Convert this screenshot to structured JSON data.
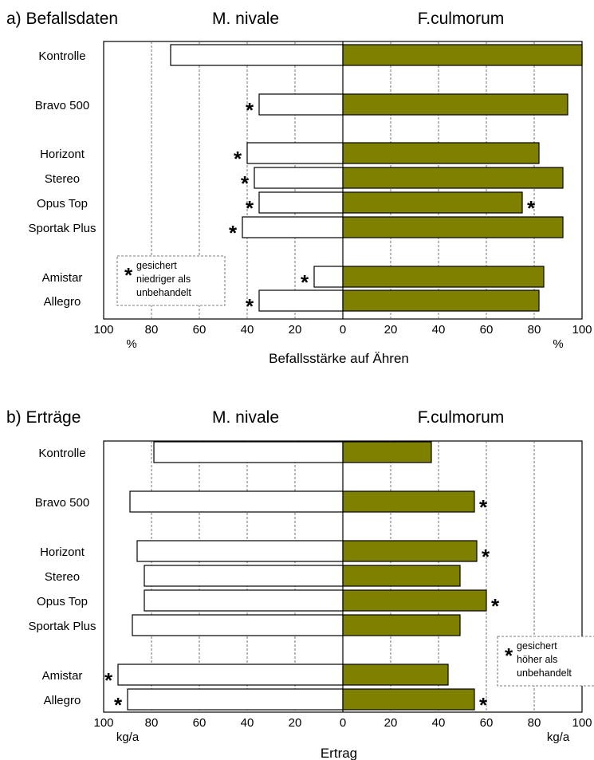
{
  "chart_data": [
    {
      "type": "bar",
      "label": "a) Befallsdaten",
      "xlabel": "Befallsstärke auf Ähren",
      "unit_left": "%",
      "unit_right": "%",
      "xlim": [
        0,
        100
      ],
      "ticks": [
        0,
        20,
        40,
        60,
        80,
        100
      ],
      "grid": true,
      "categories": [
        "Kontrolle",
        "Bravo 500",
        "Horizont",
        "Stereo",
        "Opus Top",
        "Sportak Plus",
        "Amistar",
        "Allegro"
      ],
      "series": [
        {
          "name": "M. nivale",
          "side": "left",
          "color": "#ffffff",
          "values": [
            72,
            35,
            40,
            37,
            35,
            42,
            12,
            35
          ],
          "significant": [
            false,
            true,
            true,
            true,
            true,
            true,
            true,
            true
          ]
        },
        {
          "name": "F.culmorum",
          "side": "right",
          "color": "#808000",
          "values": [
            100,
            94,
            82,
            92,
            75,
            92,
            84,
            82
          ],
          "significant": [
            false,
            false,
            false,
            false,
            true,
            false,
            false,
            false
          ]
        }
      ],
      "legend_note": {
        "symbol": "*",
        "lines": [
          "gesichert",
          "niedriger als",
          "unbehandelt"
        ]
      }
    },
    {
      "type": "bar",
      "label": "b) Erträge",
      "xlabel": "Ertrag",
      "unit_left": "kg/a",
      "unit_right": "kg/a",
      "xlim": [
        0,
        100
      ],
      "ticks": [
        0,
        20,
        40,
        60,
        80,
        100
      ],
      "grid": true,
      "categories": [
        "Kontrolle",
        "Bravo 500",
        "Horizont",
        "Stereo",
        "Opus Top",
        "Sportak Plus",
        "Amistar",
        "Allegro"
      ],
      "series": [
        {
          "name": "M. nivale",
          "side": "left",
          "color": "#ffffff",
          "values": [
            79,
            89,
            86,
            83,
            83,
            88,
            94,
            90
          ],
          "significant": [
            false,
            false,
            false,
            false,
            false,
            false,
            true,
            true
          ]
        },
        {
          "name": "F.culmorum",
          "side": "right",
          "color": "#808000",
          "values": [
            37,
            55,
            56,
            49,
            60,
            49,
            44,
            55
          ],
          "significant": [
            false,
            true,
            true,
            false,
            true,
            false,
            false,
            true
          ]
        }
      ],
      "legend_note": {
        "symbol": "*",
        "lines": [
          "gesichert",
          "höher als",
          "unbehandelt"
        ]
      }
    }
  ]
}
